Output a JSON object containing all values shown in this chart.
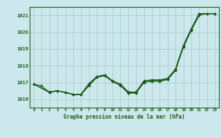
{
  "title": "Graphe pression niveau de la mer (hPa)",
  "bg_color": "#cce8ec",
  "grid_color": "#aacccc",
  "line_color": "#1a5c1a",
  "marker_color": "#1a5c1a",
  "xlim": [
    -0.5,
    23.5
  ],
  "ylim": [
    1015.5,
    1021.5
  ],
  "yticks": [
    1016,
    1017,
    1018,
    1019,
    1020,
    1021
  ],
  "xticks": [
    0,
    1,
    2,
    3,
    4,
    5,
    6,
    7,
    8,
    9,
    10,
    11,
    12,
    13,
    14,
    15,
    16,
    17,
    18,
    19,
    20,
    21,
    22,
    23
  ],
  "plot_lines": [
    {
      "x": [
        0,
        1,
        2,
        3,
        4,
        5,
        6,
        7,
        8,
        9,
        10,
        11,
        12,
        13,
        14,
        15,
        16,
        17,
        18,
        19,
        20,
        21,
        22,
        23
      ],
      "y": [
        1016.9,
        1016.8,
        1016.4,
        1016.5,
        1016.4,
        1016.3,
        1016.3,
        1016.85,
        1017.35,
        1017.45,
        1017.1,
        1016.9,
        1016.4,
        1016.45,
        1017.1,
        1017.15,
        1017.15,
        1017.2,
        1017.8,
        1019.2,
        1020.2,
        1021.1,
        1021.1,
        1021.1
      ]
    },
    {
      "x": [
        0,
        2,
        3,
        4,
        5,
        6,
        7,
        8,
        9,
        10,
        11,
        12,
        13,
        14,
        15,
        16,
        17,
        18,
        19,
        20,
        21,
        22,
        23
      ],
      "y": [
        1016.9,
        1016.45,
        1016.5,
        1016.4,
        1016.3,
        1016.3,
        1016.95,
        1017.35,
        1017.45,
        1017.1,
        1016.9,
        1016.45,
        1016.4,
        1017.1,
        1017.15,
        1017.15,
        1017.25,
        1017.8,
        1019.2,
        1020.2,
        1021.1,
        1021.1,
        1021.1
      ]
    },
    {
      "x": [
        0,
        2,
        3,
        4,
        5,
        6,
        7,
        8,
        9,
        10,
        11,
        12,
        13,
        14,
        15,
        16,
        17,
        18,
        19,
        20,
        21
      ],
      "y": [
        1016.9,
        1016.4,
        1016.5,
        1016.4,
        1016.3,
        1016.3,
        1016.8,
        1017.3,
        1017.4,
        1017.05,
        1016.85,
        1016.35,
        1016.4,
        1017.0,
        1017.1,
        1017.1,
        1017.2,
        1017.75,
        1019.1,
        1020.1,
        1021.0
      ]
    },
    {
      "x": [
        0,
        2,
        3,
        4,
        5,
        6,
        7,
        8,
        9,
        10,
        11,
        12,
        13,
        14,
        15,
        16,
        17,
        18,
        19,
        20,
        21,
        22,
        23
      ],
      "y": [
        1016.9,
        1016.43,
        1016.5,
        1016.42,
        1016.28,
        1016.28,
        1016.82,
        1017.33,
        1017.43,
        1017.08,
        1016.82,
        1016.38,
        1016.38,
        1017.02,
        1017.08,
        1017.08,
        1017.18,
        1017.72,
        1019.12,
        1020.12,
        1021.02,
        1021.1,
        1021.1
      ]
    },
    {
      "x": [
        0,
        2,
        3,
        4,
        5,
        6,
        7,
        8,
        9,
        10,
        11,
        12,
        13,
        14,
        15,
        16,
        17,
        18,
        19,
        20,
        21,
        22,
        23
      ],
      "y": [
        1016.9,
        1016.42,
        1016.5,
        1016.42,
        1016.27,
        1016.27,
        1016.82,
        1017.32,
        1017.42,
        1017.07,
        1016.82,
        1016.37,
        1016.37,
        1017.02,
        1017.07,
        1017.07,
        1017.17,
        1017.72,
        1019.12,
        1020.12,
        1021.02,
        1021.1,
        1021.1
      ]
    }
  ]
}
